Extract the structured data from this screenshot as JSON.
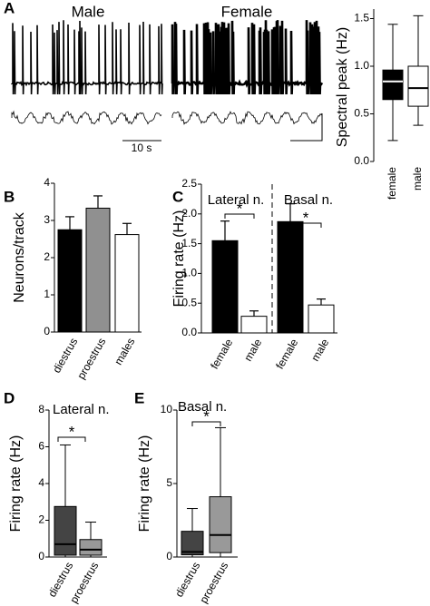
{
  "chart_data": [
    {
      "panel": "A",
      "type": "box",
      "trace_labels": [
        "Male",
        "Female"
      ],
      "scale_label": "10 s",
      "ylabel": "Spectral peak (Hz)",
      "categories": [
        "female",
        "male"
      ],
      "boxes": [
        {
          "min": 0.22,
          "q1": 0.65,
          "median": 0.84,
          "q3": 0.96,
          "max": 1.44,
          "color": "#000000",
          "median_color": "#ffffff"
        },
        {
          "min": 0.38,
          "q1": 0.58,
          "median": 0.77,
          "q3": 1.0,
          "max": 1.53,
          "color": "#ffffff",
          "median_color": "#000000"
        }
      ],
      "ylim": [
        0,
        1.6
      ],
      "yticks": [
        {
          "value": 0,
          "label": "0.0"
        },
        0.5,
        {
          "value": 1,
          "label": "1.0"
        },
        1.5
      ]
    },
    {
      "panel": "B",
      "type": "bar",
      "ylabel": "Neurons/track",
      "categories": [
        "diestrus",
        "proestrus",
        "males"
      ],
      "values": [
        2.75,
        3.33,
        2.62
      ],
      "errors": [
        0.35,
        0.33,
        0.3
      ],
      "colors": [
        "#000000",
        "#909090",
        "#ffffff"
      ],
      "ylim": [
        0,
        4
      ],
      "yticks": [
        0,
        1,
        2,
        3,
        4
      ]
    },
    {
      "panel": "C",
      "type": "bar",
      "ylabel": "Firing rate (Hz)",
      "groups": [
        {
          "name": "Lateral n.",
          "categories": [
            "female",
            "male"
          ],
          "values": [
            1.55,
            0.28
          ],
          "errors": [
            0.33,
            0.09
          ],
          "colors": [
            "#000000",
            "#ffffff"
          ]
        },
        {
          "name": "Basal n.",
          "categories": [
            "female",
            "male"
          ],
          "values": [
            1.87,
            0.47
          ],
          "errors": [
            0.3,
            0.1
          ],
          "colors": [
            "#000000",
            "#ffffff"
          ]
        }
      ],
      "annotations": [
        "*",
        "*"
      ],
      "ylim": [
        0,
        2.5
      ],
      "yticks": [
        {
          "value": 0,
          "label": "0.0"
        },
        0.5,
        {
          "value": 1,
          "label": "1.0"
        },
        1.5,
        {
          "value": 2,
          "label": "2.0"
        },
        2.5
      ]
    },
    {
      "panel": "D",
      "type": "box",
      "title": "Lateral n.",
      "ylabel": "Firing rate (Hz)",
      "categories": [
        "diestrus",
        "proestrus"
      ],
      "boxes": [
        {
          "min": 0,
          "q1": 0.1,
          "median": 0.7,
          "q3": 2.75,
          "max": 6.1,
          "color": "#444444",
          "median_color": "#000000"
        },
        {
          "min": 0,
          "q1": 0.1,
          "median": 0.4,
          "q3": 0.95,
          "max": 1.9,
          "color": "#999999",
          "median_color": "#000000"
        }
      ],
      "annotations": [
        "*"
      ],
      "ylim": [
        0,
        8
      ],
      "yticks": [
        0,
        2,
        4,
        6,
        8
      ]
    },
    {
      "panel": "E",
      "type": "box",
      "title": "Basal n.",
      "ylabel": "Firing rate (Hz)",
      "categories": [
        "diestrus",
        "proestrus"
      ],
      "boxes": [
        {
          "min": 0,
          "q1": 0.15,
          "median": 0.35,
          "q3": 1.75,
          "max": 3.3,
          "color": "#444444",
          "median_color": "#000000"
        },
        {
          "min": 0,
          "q1": 0.3,
          "median": 1.5,
          "q3": 4.1,
          "max": 8.8,
          "color": "#999999",
          "median_color": "#000000"
        }
      ],
      "annotations": [
        "*"
      ],
      "ylim": [
        0,
        10
      ],
      "yticks": [
        0,
        5,
        10
      ]
    }
  ]
}
